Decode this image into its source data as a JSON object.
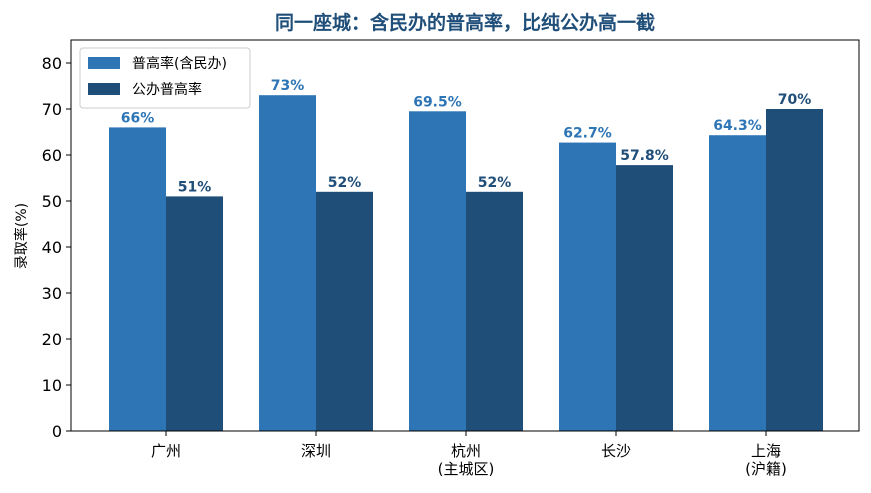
{
  "chart_data": {
    "type": "bar",
    "title": "同一座城：含民办的普高率，比纯公办高一截",
    "ylabel": "录取率(%)",
    "xlabel": "",
    "ylim": [
      0,
      85
    ],
    "yticks": [
      0,
      10,
      20,
      30,
      40,
      50,
      60,
      70,
      80
    ],
    "categories": [
      [
        "广州"
      ],
      [
        "深圳"
      ],
      [
        "杭州",
        "(主城区)"
      ],
      [
        "长沙"
      ],
      [
        "上海",
        "(沪籍)"
      ]
    ],
    "series": [
      {
        "name": "普高率(含民办)",
        "color": "#2e75b6",
        "values": [
          66,
          73,
          69.5,
          62.7,
          64.3
        ],
        "labels": [
          "66%",
          "73%",
          "69.5%",
          "62.7%",
          "64.3%"
        ]
      },
      {
        "name": "公办普高率",
        "color": "#1f4e79",
        "values": [
          51,
          52,
          52,
          57.8,
          70
        ],
        "labels": [
          "51%",
          "52%",
          "52%",
          "57.8%",
          "70%"
        ]
      }
    ],
    "grid": false,
    "legend_position": "top-left"
  }
}
